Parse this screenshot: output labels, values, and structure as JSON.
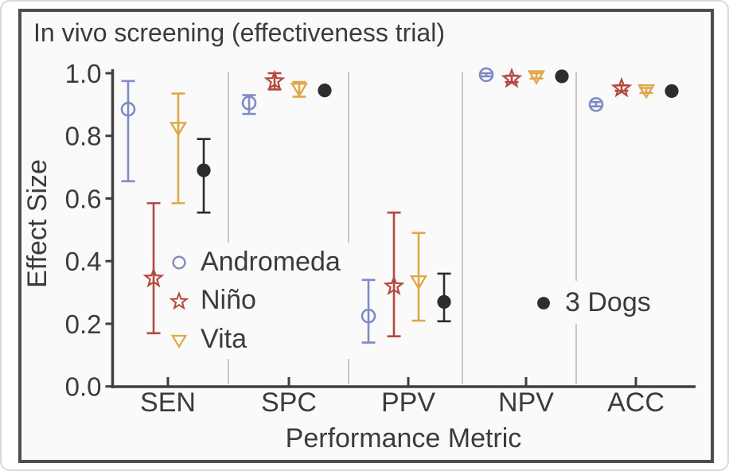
{
  "figure": {
    "title": "In vivo screening (effectiveness trial)",
    "x_axis_label": "Performance Metric",
    "y_axis_label": "Effect Size"
  },
  "chart_data": {
    "type": "scatter",
    "title": "In vivo screening (effectiveness trial)",
    "xlabel": "Performance Metric",
    "ylabel": "Effect Size",
    "categories": [
      "SEN",
      "SPC",
      "PPV",
      "NPV",
      "ACC"
    ],
    "y_ticks": [
      0.0,
      0.2,
      0.4,
      0.6,
      0.8,
      1.0
    ],
    "y_tick_labels": [
      "0.0",
      "0.2",
      "0.4",
      "0.6",
      "0.8",
      "1.0"
    ],
    "ylim": [
      0.0,
      1.03
    ],
    "grid": "light vertical separator lines between categories",
    "legend_position": "inside plot: series legend at left-center, baseline legend at center-right",
    "error_bars": "vertical lines with caps, colored per series",
    "series": [
      {
        "name": "Andromeda",
        "marker": "open-circle",
        "color": "#7f8bc4",
        "points": [
          {
            "category": "SEN",
            "value": 0.885,
            "ci_low": 0.655,
            "ci_high": 0.975
          },
          {
            "category": "SPC",
            "value": 0.905,
            "ci_low": 0.87,
            "ci_high": 0.93
          },
          {
            "category": "PPV",
            "value": 0.225,
            "ci_low": 0.14,
            "ci_high": 0.34
          },
          {
            "category": "NPV",
            "value": 0.995,
            "ci_low": 0.99,
            "ci_high": 1.0
          },
          {
            "category": "ACC",
            "value": 0.9,
            "ci_low": 0.894,
            "ci_high": 0.908
          }
        ]
      },
      {
        "name": "Niño",
        "marker": "open-star",
        "color": "#b5493f",
        "points": [
          {
            "category": "SEN",
            "value": 0.345,
            "ci_low": 0.17,
            "ci_high": 0.585
          },
          {
            "category": "SPC",
            "value": 0.975,
            "ci_low": 0.948,
            "ci_high": 1.0
          },
          {
            "category": "PPV",
            "value": 0.32,
            "ci_low": 0.16,
            "ci_high": 0.555
          },
          {
            "category": "NPV",
            "value": 0.982,
            "ci_low": 0.972,
            "ci_high": 0.992
          },
          {
            "category": "ACC",
            "value": 0.952,
            "ci_low": 0.944,
            "ci_high": 0.961
          }
        ]
      },
      {
        "name": "Vita",
        "marker": "open-triangle-down",
        "color": "#e0a749",
        "points": [
          {
            "category": "SEN",
            "value": 0.825,
            "ci_low": 0.585,
            "ci_high": 0.935
          },
          {
            "category": "SPC",
            "value": 0.95,
            "ci_low": 0.925,
            "ci_high": 0.972
          },
          {
            "category": "PPV",
            "value": 0.335,
            "ci_low": 0.21,
            "ci_high": 0.49
          },
          {
            "category": "NPV",
            "value": 0.99,
            "ci_low": 0.983,
            "ci_high": 1.0
          },
          {
            "category": "ACC",
            "value": 0.945,
            "ci_low": 0.937,
            "ci_high": 0.953
          }
        ]
      },
      {
        "name": "3 Dogs",
        "marker": "filled-circle",
        "color": "#2d2d2d",
        "points": [
          {
            "category": "SEN",
            "value": 0.69,
            "ci_low": 0.555,
            "ci_high": 0.79
          },
          {
            "category": "SPC",
            "value": 0.945,
            "ci_low": 0.945,
            "ci_high": 0.945
          },
          {
            "category": "PPV",
            "value": 0.27,
            "ci_low": 0.208,
            "ci_high": 0.36
          },
          {
            "category": "NPV",
            "value": 0.99,
            "ci_low": 0.99,
            "ci_high": 0.99
          },
          {
            "category": "ACC",
            "value": 0.943,
            "ci_low": 0.943,
            "ci_high": 0.943
          }
        ]
      }
    ]
  },
  "colors": {
    "text": "#3b3b3b",
    "axis": "#3f3f3f",
    "gridline": "#c8c8c8",
    "figure_border": "#4e4e4e",
    "plot_background": "#fafafa"
  }
}
